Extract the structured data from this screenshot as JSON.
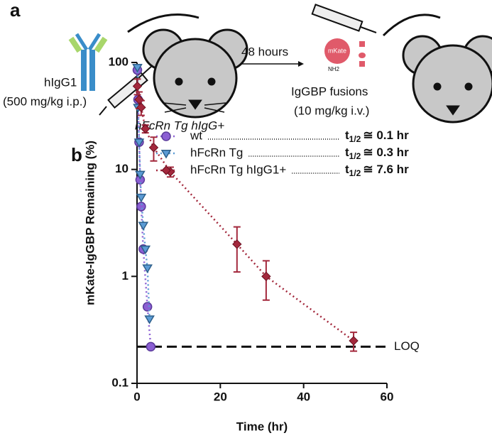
{
  "panel_a": {
    "letter": "a",
    "antibody": "hIgG1",
    "dose1": "(500 mg/kg i.p.)",
    "mouse1": "hFcRn Tg hIgG+",
    "interval": "48 hours",
    "fusion": "IgGBP fusions",
    "dose2": "(10 mg/kg i.v.)",
    "protein": "mKate",
    "terminus": "NH2"
  },
  "chart_data": {
    "type": "scatter",
    "letter": "b",
    "x_label": "Time (hr)",
    "y_label": "mKate-IgGBP Remaining (%)",
    "xlim": [
      0,
      60
    ],
    "xticks": [
      0,
      20,
      40,
      60
    ],
    "ylim": [
      0.1,
      100
    ],
    "yticks": [
      0.1,
      1,
      10,
      100
    ],
    "log_y": true,
    "series": [
      {
        "name": "wt",
        "color": "#8b5fd3",
        "marker": "circle",
        "t_sym": "t",
        "t_sub": "1/2",
        "half_life": "≅ 0.1 hr",
        "x": [
          0.083,
          0.25,
          0.5,
          0.75,
          1,
          1.5,
          2.5,
          3.3
        ],
        "values": [
          85,
          45,
          18,
          8,
          4.5,
          1.8,
          0.52,
          0.22
        ]
      },
      {
        "name": "hFcRn Tg",
        "color": "#5b9bd5",
        "marker": "triangle",
        "t_sym": "t",
        "t_sub": "1/2",
        "half_life": "≅ 0.3 hr",
        "x": [
          0.083,
          0.25,
          0.5,
          0.75,
          1,
          1.5,
          2,
          2.5,
          3
        ],
        "values": [
          90,
          38,
          18,
          9,
          5.5,
          3,
          1.8,
          1.2,
          0.4
        ]
      },
      {
        "name": "hFcRn Tg hIgG1+",
        "color": "#a3283c",
        "marker": "diamond",
        "t_sym": "t",
        "t_sub": "1/2",
        "half_life": "≅ 7.6 hr",
        "x": [
          0.083,
          0.5,
          1,
          2,
          4,
          8,
          24,
          31,
          52
        ],
        "values": [
          60,
          45,
          38,
          24,
          16,
          9.5,
          2,
          1,
          0.25
        ],
        "errors": [
          10,
          8,
          6,
          2,
          4,
          1,
          0.9,
          0.4,
          0.05
        ]
      }
    ],
    "annotations": [
      {
        "label": "LOQ",
        "value": 0.22
      }
    ]
  }
}
